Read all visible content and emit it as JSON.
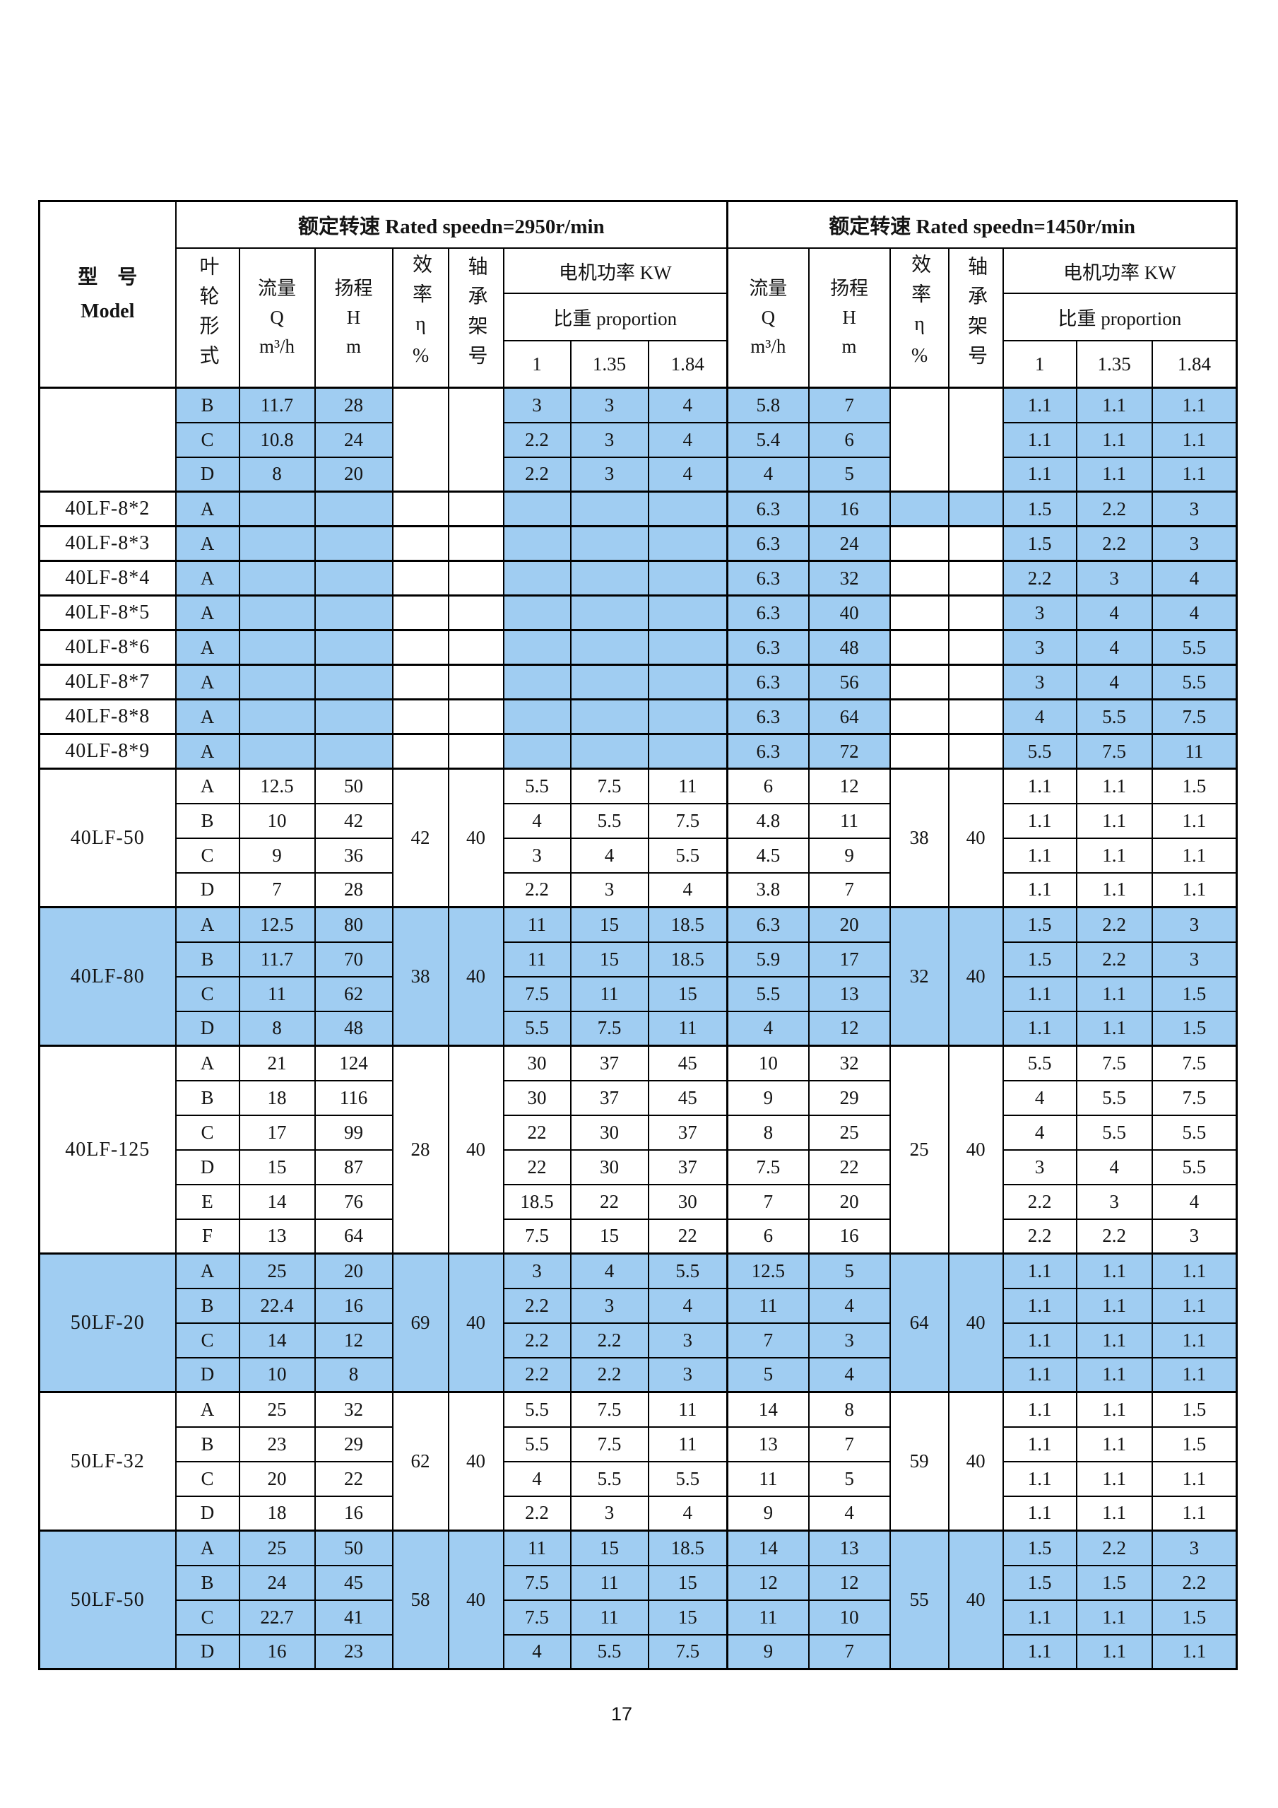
{
  "page": {
    "number": "17"
  },
  "table": {
    "header": {
      "model": {
        "cn": "型　号",
        "en": "Model"
      },
      "impeller": "叶轮形式",
      "speed_2950": "额定转速 Rated speedn=2950r/min",
      "speed_1450": "额定转速 Rated speedn=1450r/min",
      "flow": {
        "cn": "流量",
        "sym": "Q",
        "unit": "m³/h"
      },
      "head": {
        "cn": "扬程",
        "sym": "H",
        "unit": "m"
      },
      "efficiency": "效率η%",
      "bearing": "轴承架号",
      "motor_power": "电机功率 KW",
      "proportion": "比重 proportion",
      "ratios": [
        "1",
        "1.35",
        "1.84"
      ]
    },
    "colors": {
      "highlight_blue": "#a0cdf2",
      "border": "#000000"
    },
    "groups": [
      {
        "model": "",
        "highlight": "partial",
        "leff": "",
        "lbrg": "",
        "reff": "",
        "rbrg": "",
        "rows": [
          {
            "imp": "B",
            "lq": "11.7",
            "lh": "28",
            "lp": [
              "3",
              "3",
              "4"
            ],
            "rq": "5.8",
            "rh": "7",
            "rp": [
              "1.1",
              "1.1",
              "1.1"
            ]
          },
          {
            "imp": "C",
            "lq": "10.8",
            "lh": "24",
            "lp": [
              "2.2",
              "3",
              "4"
            ],
            "rq": "5.4",
            "rh": "6",
            "rp": [
              "1.1",
              "1.1",
              "1.1"
            ]
          },
          {
            "imp": "D",
            "lq": "8",
            "lh": "20",
            "lp": [
              "2.2",
              "3",
              "4"
            ],
            "rq": "4",
            "rh": "5",
            "rp": [
              "1.1",
              "1.1",
              "1.1"
            ]
          }
        ]
      },
      {
        "model": "40LF-8*2",
        "highlight": "partial",
        "r_eff_hl": true,
        "leff": "",
        "lbrg": "",
        "reff": "",
        "rbrg": "",
        "rows": [
          {
            "imp": "A",
            "lq": "",
            "lh": "",
            "lp": [
              "",
              "",
              ""
            ],
            "rq": "6.3",
            "rh": "16",
            "rp": [
              "1.5",
              "2.2",
              "3"
            ]
          }
        ]
      },
      {
        "model": "40LF-8*3",
        "highlight": "partial",
        "leff": "",
        "lbrg": "",
        "reff": "",
        "rbrg": "",
        "rows": [
          {
            "imp": "A",
            "lq": "",
            "lh": "",
            "lp": [
              "",
              "",
              ""
            ],
            "rq": "6.3",
            "rh": "24",
            "rp": [
              "1.5",
              "2.2",
              "3"
            ]
          }
        ]
      },
      {
        "model": "40LF-8*4",
        "highlight": "partial",
        "leff": "",
        "lbrg": "",
        "reff": "",
        "rbrg": "",
        "rows": [
          {
            "imp": "A",
            "lq": "",
            "lh": "",
            "lp": [
              "",
              "",
              ""
            ],
            "rq": "6.3",
            "rh": "32",
            "rp": [
              "2.2",
              "3",
              "4"
            ]
          }
        ]
      },
      {
        "model": "40LF-8*5",
        "highlight": "partial",
        "leff": "",
        "lbrg": "",
        "reff": "",
        "rbrg": "",
        "rows": [
          {
            "imp": "A",
            "lq": "",
            "lh": "",
            "lp": [
              "",
              "",
              ""
            ],
            "rq": "6.3",
            "rh": "40",
            "rp": [
              "3",
              "4",
              "4"
            ]
          }
        ]
      },
      {
        "model": "40LF-8*6",
        "highlight": "partial",
        "leff": "",
        "lbrg": "",
        "reff": "",
        "rbrg": "",
        "rows": [
          {
            "imp": "A",
            "lq": "",
            "lh": "",
            "lp": [
              "",
              "",
              ""
            ],
            "rq": "6.3",
            "rh": "48",
            "rp": [
              "3",
              "4",
              "5.5"
            ]
          }
        ]
      },
      {
        "model": "40LF-8*7",
        "highlight": "partial",
        "leff": "",
        "lbrg": "",
        "reff": "",
        "rbrg": "",
        "rows": [
          {
            "imp": "A",
            "lq": "",
            "lh": "",
            "lp": [
              "",
              "",
              ""
            ],
            "rq": "6.3",
            "rh": "56",
            "rp": [
              "3",
              "4",
              "5.5"
            ]
          }
        ]
      },
      {
        "model": "40LF-8*8",
        "highlight": "partial",
        "leff": "",
        "lbrg": "",
        "reff": "",
        "rbrg": "",
        "rows": [
          {
            "imp": "A",
            "lq": "",
            "lh": "",
            "lp": [
              "",
              "",
              ""
            ],
            "rq": "6.3",
            "rh": "64",
            "rp": [
              "4",
              "5.5",
              "7.5"
            ]
          }
        ]
      },
      {
        "model": "40LF-8*9",
        "highlight": "partial",
        "leff": "",
        "lbrg": "",
        "reff": "",
        "rbrg": "",
        "rows": [
          {
            "imp": "A",
            "lq": "",
            "lh": "",
            "lp": [
              "",
              "",
              ""
            ],
            "rq": "6.3",
            "rh": "72",
            "rp": [
              "5.5",
              "7.5",
              "11"
            ]
          }
        ]
      },
      {
        "model": "40LF-50",
        "highlight": "none",
        "leff": "42",
        "lbrg": "40",
        "reff": "38",
        "rbrg": "40",
        "rows": [
          {
            "imp": "A",
            "lq": "12.5",
            "lh": "50",
            "lp": [
              "5.5",
              "7.5",
              "11"
            ],
            "rq": "6",
            "rh": "12",
            "rp": [
              "1.1",
              "1.1",
              "1.5"
            ]
          },
          {
            "imp": "B",
            "lq": "10",
            "lh": "42",
            "lp": [
              "4",
              "5.5",
              "7.5"
            ],
            "rq": "4.8",
            "rh": "11",
            "rp": [
              "1.1",
              "1.1",
              "1.1"
            ]
          },
          {
            "imp": "C",
            "lq": "9",
            "lh": "36",
            "lp": [
              "3",
              "4",
              "5.5"
            ],
            "rq": "4.5",
            "rh": "9",
            "rp": [
              "1.1",
              "1.1",
              "1.1"
            ]
          },
          {
            "imp": "D",
            "lq": "7",
            "lh": "28",
            "lp": [
              "2.2",
              "3",
              "4"
            ],
            "rq": "3.8",
            "rh": "7",
            "rp": [
              "1.1",
              "1.1",
              "1.1"
            ]
          }
        ]
      },
      {
        "model": "40LF-80",
        "highlight": "full",
        "leff": "38",
        "lbrg": "40",
        "reff": "32",
        "rbrg": "40",
        "rows": [
          {
            "imp": "A",
            "lq": "12.5",
            "lh": "80",
            "lp": [
              "11",
              "15",
              "18.5"
            ],
            "rq": "6.3",
            "rh": "20",
            "rp": [
              "1.5",
              "2.2",
              "3"
            ]
          },
          {
            "imp": "B",
            "lq": "11.7",
            "lh": "70",
            "lp": [
              "11",
              "15",
              "18.5"
            ],
            "rq": "5.9",
            "rh": "17",
            "rp": [
              "1.5",
              "2.2",
              "3"
            ]
          },
          {
            "imp": "C",
            "lq": "11",
            "lh": "62",
            "lp": [
              "7.5",
              "11",
              "15"
            ],
            "rq": "5.5",
            "rh": "13",
            "rp": [
              "1.1",
              "1.1",
              "1.5"
            ]
          },
          {
            "imp": "D",
            "lq": "8",
            "lh": "48",
            "lp": [
              "5.5",
              "7.5",
              "11"
            ],
            "rq": "4",
            "rh": "12",
            "rp": [
              "1.1",
              "1.1",
              "1.5"
            ]
          }
        ]
      },
      {
        "model": "40LF-125",
        "highlight": "none",
        "leff": "28",
        "lbrg": "40",
        "reff": "25",
        "rbrg": "40",
        "rows": [
          {
            "imp": "A",
            "lq": "21",
            "lh": "124",
            "lp": [
              "30",
              "37",
              "45"
            ],
            "rq": "10",
            "rh": "32",
            "rp": [
              "5.5",
              "7.5",
              "7.5"
            ]
          },
          {
            "imp": "B",
            "lq": "18",
            "lh": "116",
            "lp": [
              "30",
              "37",
              "45"
            ],
            "rq": "9",
            "rh": "29",
            "rp": [
              "4",
              "5.5",
              "7.5"
            ]
          },
          {
            "imp": "C",
            "lq": "17",
            "lh": "99",
            "lp": [
              "22",
              "30",
              "37"
            ],
            "rq": "8",
            "rh": "25",
            "rp": [
              "4",
              "5.5",
              "5.5"
            ]
          },
          {
            "imp": "D",
            "lq": "15",
            "lh": "87",
            "lp": [
              "22",
              "30",
              "37"
            ],
            "rq": "7.5",
            "rh": "22",
            "rp": [
              "3",
              "4",
              "5.5"
            ]
          },
          {
            "imp": "E",
            "lq": "14",
            "lh": "76",
            "lp": [
              "18.5",
              "22",
              "30"
            ],
            "rq": "7",
            "rh": "20",
            "rp": [
              "2.2",
              "3",
              "4"
            ]
          },
          {
            "imp": "F",
            "lq": "13",
            "lh": "64",
            "lp": [
              "7.5",
              "15",
              "22"
            ],
            "rq": "6",
            "rh": "16",
            "rp": [
              "2.2",
              "2.2",
              "3"
            ]
          }
        ]
      },
      {
        "model": "50LF-20",
        "highlight": "full",
        "leff": "69",
        "lbrg": "40",
        "reff": "64",
        "rbrg": "40",
        "rows": [
          {
            "imp": "A",
            "lq": "25",
            "lh": "20",
            "lp": [
              "3",
              "4",
              "5.5"
            ],
            "rq": "12.5",
            "rh": "5",
            "rp": [
              "1.1",
              "1.1",
              "1.1"
            ]
          },
          {
            "imp": "B",
            "lq": "22.4",
            "lh": "16",
            "lp": [
              "2.2",
              "3",
              "4"
            ],
            "rq": "11",
            "rh": "4",
            "rp": [
              "1.1",
              "1.1",
              "1.1"
            ]
          },
          {
            "imp": "C",
            "lq": "14",
            "lh": "12",
            "lp": [
              "2.2",
              "2.2",
              "3"
            ],
            "rq": "7",
            "rh": "3",
            "rp": [
              "1.1",
              "1.1",
              "1.1"
            ]
          },
          {
            "imp": "D",
            "lq": "10",
            "lh": "8",
            "lp": [
              "2.2",
              "2.2",
              "3"
            ],
            "rq": "5",
            "rh": "4",
            "rp": [
              "1.1",
              "1.1",
              "1.1"
            ]
          }
        ]
      },
      {
        "model": "50LF-32",
        "highlight": "none",
        "leff": "62",
        "lbrg": "40",
        "reff": "59",
        "rbrg": "40",
        "rows": [
          {
            "imp": "A",
            "lq": "25",
            "lh": "32",
            "lp": [
              "5.5",
              "7.5",
              "11"
            ],
            "rq": "14",
            "rh": "8",
            "rp": [
              "1.1",
              "1.1",
              "1.5"
            ]
          },
          {
            "imp": "B",
            "lq": "23",
            "lh": "29",
            "lp": [
              "5.5",
              "7.5",
              "11"
            ],
            "rq": "13",
            "rh": "7",
            "rp": [
              "1.1",
              "1.1",
              "1.5"
            ]
          },
          {
            "imp": "C",
            "lq": "20",
            "lh": "22",
            "lp": [
              "4",
              "5.5",
              "5.5"
            ],
            "rq": "11",
            "rh": "5",
            "rp": [
              "1.1",
              "1.1",
              "1.1"
            ]
          },
          {
            "imp": "D",
            "lq": "18",
            "lh": "16",
            "lp": [
              "2.2",
              "3",
              "4"
            ],
            "rq": "9",
            "rh": "4",
            "rp": [
              "1.1",
              "1.1",
              "1.1"
            ]
          }
        ]
      },
      {
        "model": "50LF-50",
        "highlight": "full",
        "leff": "58",
        "lbrg": "40",
        "reff": "55",
        "rbrg": "40",
        "rows": [
          {
            "imp": "A",
            "lq": "25",
            "lh": "50",
            "lp": [
              "11",
              "15",
              "18.5"
            ],
            "rq": "14",
            "rh": "13",
            "rp": [
              "1.5",
              "2.2",
              "3"
            ]
          },
          {
            "imp": "B",
            "lq": "24",
            "lh": "45",
            "lp": [
              "7.5",
              "11",
              "15"
            ],
            "rq": "12",
            "rh": "12",
            "rp": [
              "1.5",
              "1.5",
              "2.2"
            ]
          },
          {
            "imp": "C",
            "lq": "22.7",
            "lh": "41",
            "lp": [
              "7.5",
              "11",
              "15"
            ],
            "rq": "11",
            "rh": "10",
            "rp": [
              "1.1",
              "1.1",
              "1.5"
            ]
          },
          {
            "imp": "D",
            "lq": "16",
            "lh": "23",
            "lp": [
              "4",
              "5.5",
              "7.5"
            ],
            "rq": "9",
            "rh": "7",
            "rp": [
              "1.1",
              "1.1",
              "1.1"
            ]
          }
        ]
      }
    ]
  }
}
